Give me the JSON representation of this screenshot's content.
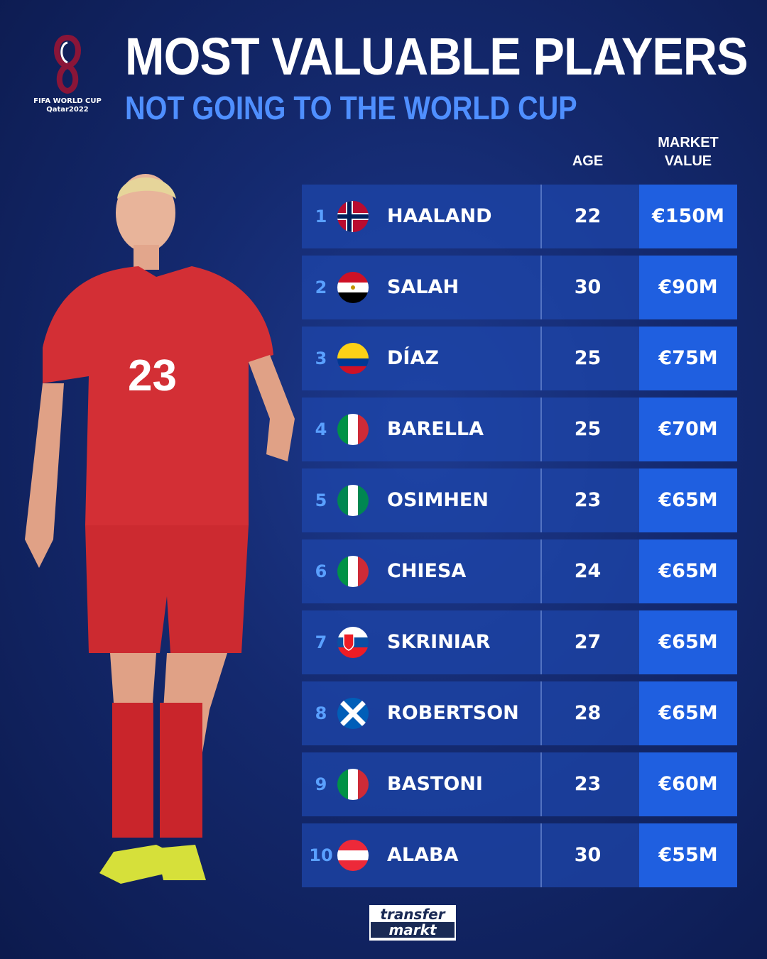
{
  "logo": {
    "caption_line1": "FIFA WORLD CUP",
    "caption_line2": "Qatar2022"
  },
  "header": {
    "title": "MOST VALUABLE PLAYERS",
    "subtitle": "NOT GOING TO THE WORLD CUP"
  },
  "columns": {
    "age": "AGE",
    "market_value_line1": "MARKET",
    "market_value_line2": "VALUE"
  },
  "colors": {
    "accent": "#4f8fff",
    "value_cell": "#1f5fe0",
    "row": "#1e46aa",
    "background": "#14296e"
  },
  "players": [
    {
      "rank": "1",
      "flag": "norway",
      "name": "HAALAND",
      "age": "22",
      "value": "€150M"
    },
    {
      "rank": "2",
      "flag": "egypt",
      "name": "SALAH",
      "age": "30",
      "value": "€90M"
    },
    {
      "rank": "3",
      "flag": "colombia",
      "name": "DÍAZ",
      "age": "25",
      "value": "€75M"
    },
    {
      "rank": "4",
      "flag": "italy",
      "name": "BARELLA",
      "age": "25",
      "value": "€70M"
    },
    {
      "rank": "5",
      "flag": "nigeria",
      "name": "OSIMHEN",
      "age": "23",
      "value": "€65M"
    },
    {
      "rank": "6",
      "flag": "italy",
      "name": "CHIESA",
      "age": "24",
      "value": "€65M"
    },
    {
      "rank": "7",
      "flag": "slovakia",
      "name": "SKRINIAR",
      "age": "27",
      "value": "€65M"
    },
    {
      "rank": "8",
      "flag": "scotland",
      "name": "ROBERTSON",
      "age": "28",
      "value": "€65M"
    },
    {
      "rank": "9",
      "flag": "italy",
      "name": "BASTONI",
      "age": "23",
      "value": "€60M"
    },
    {
      "rank": "10",
      "flag": "austria",
      "name": "ALABA",
      "age": "30",
      "value": "€55M"
    }
  ],
  "footer": {
    "brand_line1": "transfer",
    "brand_line2": "markt"
  },
  "player_photo": {
    "shirt_number": "23"
  }
}
